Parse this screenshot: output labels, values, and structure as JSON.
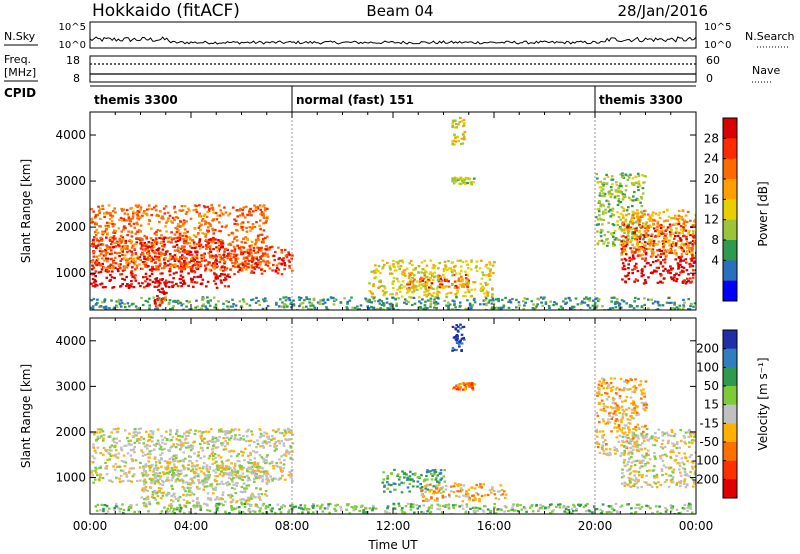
{
  "header": {
    "title": "Hokkaido (fitACF)",
    "beam": "Beam 04",
    "date": "28/Jan/2016"
  },
  "status_panel": {
    "nsky_label": "N.Sky",
    "nsearch_label": "N.Search",
    "left_ticks": [
      "10^5",
      "10^0"
    ],
    "right_ticks": [
      "10^5",
      "10^0"
    ]
  },
  "freq_panel": {
    "label_line1": "Freq.",
    "label_line2": "[MHz]",
    "left_ticks": [
      "18",
      "8"
    ],
    "right_ticks": [
      "60",
      "0"
    ],
    "nave_label": "Nave",
    "cpid_label": "CPID"
  },
  "cpid_segments": [
    {
      "label": "themis 3300",
      "start_hour": 0
    },
    {
      "label": "normal (fast) 151",
      "start_hour": 8
    },
    {
      "label": "themis 3300",
      "start_hour": 20
    }
  ],
  "chart_data": [
    {
      "type": "heatmap",
      "panel": "power",
      "ylabel": "Slant Range [km]",
      "yticks": [
        1000,
        2000,
        3000,
        4000
      ],
      "ylim": [
        200,
        4500
      ],
      "xlim": [
        0,
        24
      ],
      "colorbar": {
        "label": "Power [dB]",
        "ticks": [
          "28",
          "24",
          "20",
          "16",
          "12",
          "8",
          "4"
        ],
        "colors": [
          "#d90000",
          "#ff2a00",
          "#ff6a00",
          "#ffa000",
          "#e8d000",
          "#9cc43a",
          "#2f9a4e",
          "#2a6fbb",
          "#0000ff"
        ]
      },
      "regions": [
        {
          "t0": 0.0,
          "t1": 5.5,
          "r0": 700,
          "r1": 1800,
          "level": 8
        },
        {
          "t0": 0.0,
          "t1": 7.0,
          "r0": 1100,
          "r1": 2500,
          "level": 6
        },
        {
          "t0": 5.5,
          "t1": 8.0,
          "r0": 1000,
          "r1": 1600,
          "level": 7
        },
        {
          "t0": 2.5,
          "t1": 3.0,
          "r0": 300,
          "r1": 900,
          "level": 8
        },
        {
          "t0": 12.5,
          "t1": 15.0,
          "r0": 700,
          "r1": 1000,
          "level": 7
        },
        {
          "t0": 11.0,
          "t1": 16.0,
          "r0": 500,
          "r1": 1300,
          "level": 4
        },
        {
          "t0": 14.3,
          "t1": 14.8,
          "r0": 3800,
          "r1": 4400,
          "level": 4
        },
        {
          "t0": 14.3,
          "t1": 15.2,
          "r0": 2950,
          "r1": 3100,
          "level": 3
        },
        {
          "t0": 20.0,
          "t1": 22.0,
          "r0": 1600,
          "r1": 3200,
          "level": 3
        },
        {
          "t0": 21.0,
          "t1": 24.0,
          "r0": 800,
          "r1": 2100,
          "level": 8
        },
        {
          "t0": 21.0,
          "t1": 24.0,
          "r0": 1400,
          "r1": 2400,
          "level": 5
        },
        {
          "t0": 0.0,
          "t1": 24.0,
          "r0": 200,
          "r1": 500,
          "level": 2
        }
      ]
    },
    {
      "type": "heatmap",
      "panel": "velocity",
      "ylabel": "Slant Range [km]",
      "xlabel": "Time UT",
      "yticks": [
        1000,
        2000,
        3000,
        4000
      ],
      "xticks": [
        "00:00",
        "04:00",
        "08:00",
        "12:00",
        "16:00",
        "20:00",
        "00:00"
      ],
      "ylim": [
        200,
        4500
      ],
      "xlim": [
        0,
        24
      ],
      "colorbar": {
        "label": "Velocity [m s⁻¹]",
        "ticks": [
          "200",
          "100",
          "50",
          "15",
          "-15",
          "-50",
          "-100",
          "-200"
        ],
        "colors": [
          "#1f2fa8",
          "#2f7fc0",
          "#2f9a4e",
          "#7ccc3a",
          "#c0c0c0",
          "#ffb000",
          "#ff7000",
          "#ff3000",
          "#e00000"
        ]
      },
      "regions": [
        {
          "t0": 0.0,
          "t1": 8.0,
          "r0": 900,
          "r1": 2100,
          "level": 4
        },
        {
          "t0": 2.0,
          "t1": 7.0,
          "r0": 400,
          "r1": 1300,
          "level": 4
        },
        {
          "t0": 11.5,
          "t1": 14.0,
          "r0": 700,
          "r1": 1200,
          "level": 6
        },
        {
          "t0": 13.0,
          "t1": 16.5,
          "r0": 500,
          "r1": 900,
          "level": 3
        },
        {
          "t0": 14.3,
          "t1": 14.8,
          "r0": 3800,
          "r1": 4400,
          "level": 8
        },
        {
          "t0": 14.3,
          "t1": 15.2,
          "r0": 2950,
          "r1": 3100,
          "level": 2
        },
        {
          "t0": 20.0,
          "t1": 22.0,
          "r0": 1500,
          "r1": 3200,
          "level": 3
        },
        {
          "t0": 21.0,
          "t1": 24.0,
          "r0": 800,
          "r1": 2100,
          "level": 4
        },
        {
          "t0": 0.0,
          "t1": 24.0,
          "r0": 200,
          "r1": 450,
          "level": 5
        }
      ]
    }
  ]
}
